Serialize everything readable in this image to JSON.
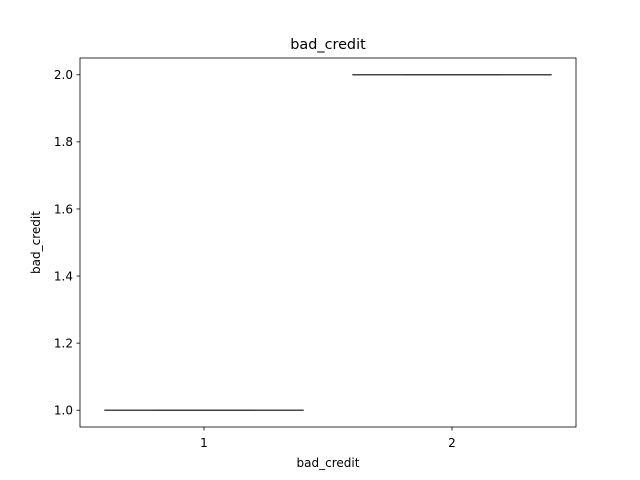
{
  "chart_data": {
    "type": "box",
    "title": "bad_credit",
    "xlabel": "bad_credit",
    "ylabel": "bad_credit",
    "categories": [
      "1",
      "2"
    ],
    "ylim": [
      0.95,
      2.05
    ],
    "yticks": [
      1.0,
      1.2,
      1.4,
      1.6,
      1.8,
      2.0
    ],
    "ytick_labels": [
      "1.0",
      "1.2",
      "1.4",
      "1.6",
      "1.8",
      "2.0"
    ],
    "boxes": [
      {
        "category": "1",
        "min": 1.0,
        "q1": 1.0,
        "median": 1.0,
        "q3": 1.0,
        "max": 1.0
      },
      {
        "category": "2",
        "min": 2.0,
        "q1": 2.0,
        "median": 2.0,
        "q3": 2.0,
        "max": 2.0
      }
    ],
    "grid": false,
    "colors": {
      "box_line": "#3f3f3f",
      "axes": "#000000",
      "background": "#ffffff"
    }
  }
}
